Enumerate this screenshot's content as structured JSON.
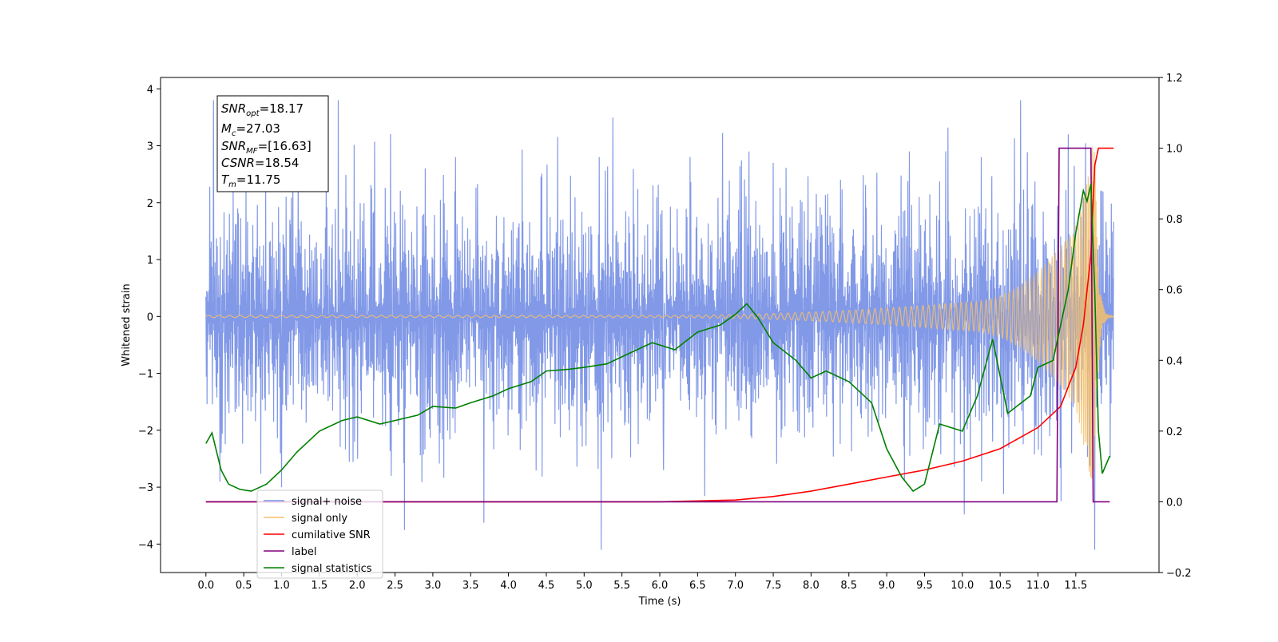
{
  "chart_data": {
    "type": "line",
    "xlabel": "Time (s)",
    "ylabel": "Whitened strain",
    "xlim": [
      -0.6,
      12.6
    ],
    "ylim": [
      -4.5,
      4.2
    ],
    "y2lim": [
      -0.2,
      1.2
    ],
    "x_ticks": [
      "0.0",
      "0.5",
      "1.0",
      "1.5",
      "2.0",
      "2.5",
      "3.0",
      "3.5",
      "4.0",
      "4.5",
      "5.0",
      "5.5",
      "6.0",
      "6.5",
      "7.0",
      "7.5",
      "8.0",
      "8.5",
      "9.0",
      "9.5",
      "10.0",
      "10.5",
      "11.0",
      "11.5"
    ],
    "y_ticks": [
      "4",
      "3",
      "2",
      "1",
      "0",
      "−1",
      "−2",
      "−3",
      "−4"
    ],
    "y2_ticks": [
      "1.2",
      "1.0",
      "0.8",
      "0.6",
      "0.4",
      "0.2",
      "0.0",
      "−0.2"
    ],
    "legend_position": "lower-left",
    "annotation": {
      "snr_opt": "=18.17",
      "mc": "=27.03",
      "snr_mf": "=[16.63]",
      "csnr": "=18.54",
      "tm": "=11.75"
    },
    "series": [
      {
        "name": "signal+ noise",
        "color": "#7b94e6",
        "axis": "left",
        "noise_envelope": {
          "typical_amplitude": 1.7,
          "peak_max": 3.8,
          "peak_min": -4.1
        },
        "peaks": [
          [
            0.1,
            3.8
          ],
          [
            0.2,
            -2.4
          ],
          [
            1.0,
            -3.0
          ],
          [
            1.15,
            2.4
          ],
          [
            2.9,
            2.6
          ],
          [
            3.3,
            2.8
          ],
          [
            5.2,
            2.8
          ],
          [
            6.4,
            2.8
          ],
          [
            7.5,
            2.7
          ],
          [
            9.3,
            2.9
          ],
          [
            10.25,
            2.8
          ],
          [
            11.4,
            3.2
          ],
          [
            11.75,
            -4.1
          ],
          [
            10.4,
            -2.2
          ],
          [
            2.45,
            -2.8
          ],
          [
            6.05,
            -2.7
          ]
        ],
        "x_range": [
          0.0,
          12.0
        ]
      },
      {
        "name": "signal only",
        "color": "#f5bf6b",
        "axis": "left",
        "chirp": {
          "x_start": 0.0,
          "x_merger": 11.75,
          "x_end": 12.0,
          "amplitude_early": 0.02,
          "amplitude_at_10": 0.25,
          "amplitude_at_11_5": 1.6,
          "amplitude_peak": 3.2
        }
      },
      {
        "name": "cumilative SNR",
        "color": "#ff0000",
        "axis": "right",
        "x": [
          0.0,
          6.0,
          7.0,
          7.5,
          8.0,
          8.5,
          9.0,
          9.5,
          10.0,
          10.5,
          11.0,
          11.3,
          11.5,
          11.6,
          11.7,
          11.75,
          11.8,
          12.0
        ],
        "y": [
          0.0,
          0.0,
          0.005,
          0.015,
          0.03,
          0.05,
          0.07,
          0.09,
          0.115,
          0.15,
          0.21,
          0.27,
          0.38,
          0.5,
          0.7,
          0.95,
          1.0,
          1.0
        ]
      },
      {
        "name": "label",
        "color": "#800080",
        "axis": "right",
        "x": [
          0.0,
          11.25,
          11.28,
          11.7,
          11.73,
          11.95
        ],
        "y": [
          0.0,
          0.0,
          1.0,
          1.0,
          0.0,
          0.0
        ]
      },
      {
        "name": "signal statistics",
        "color": "#008000",
        "axis": "right",
        "x": [
          0.0,
          0.08,
          0.2,
          0.3,
          0.45,
          0.6,
          0.8,
          1.0,
          1.2,
          1.5,
          1.8,
          2.0,
          2.3,
          2.5,
          2.8,
          3.0,
          3.3,
          3.5,
          3.8,
          4.0,
          4.3,
          4.5,
          4.8,
          5.0,
          5.3,
          5.6,
          5.9,
          6.2,
          6.5,
          6.8,
          7.0,
          7.15,
          7.3,
          7.5,
          7.8,
          8.0,
          8.2,
          8.5,
          8.8,
          9.0,
          9.2,
          9.35,
          9.5,
          9.7,
          10.0,
          10.2,
          10.4,
          10.6,
          10.9,
          11.0,
          11.2,
          11.4,
          11.5,
          11.6,
          11.65,
          11.7,
          11.75,
          11.8,
          11.85,
          11.95
        ],
        "y": [
          0.165,
          0.195,
          0.09,
          0.05,
          0.035,
          0.03,
          0.05,
          0.09,
          0.14,
          0.2,
          0.23,
          0.24,
          0.22,
          0.23,
          0.245,
          0.27,
          0.265,
          0.28,
          0.3,
          0.32,
          0.34,
          0.37,
          0.375,
          0.38,
          0.39,
          0.42,
          0.45,
          0.43,
          0.48,
          0.5,
          0.53,
          0.56,
          0.52,
          0.45,
          0.4,
          0.35,
          0.37,
          0.34,
          0.28,
          0.15,
          0.07,
          0.03,
          0.05,
          0.22,
          0.2,
          0.3,
          0.46,
          0.25,
          0.3,
          0.38,
          0.4,
          0.6,
          0.76,
          0.88,
          0.85,
          0.9,
          0.6,
          0.2,
          0.08,
          0.13
        ]
      }
    ]
  }
}
